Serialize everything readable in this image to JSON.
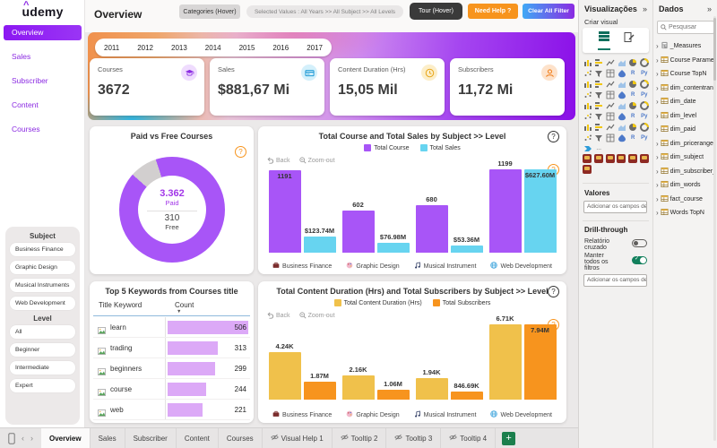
{
  "brand": {
    "logo": "udemy"
  },
  "sidebar": {
    "nav": [
      {
        "label": "Overview",
        "active": true
      },
      {
        "label": "Sales",
        "active": false
      },
      {
        "label": "Subscriber",
        "active": false
      },
      {
        "label": "Content",
        "active": false
      },
      {
        "label": "Courses",
        "active": false
      }
    ],
    "filters": {
      "subject_label": "Subject",
      "subjects": [
        "Business Finance",
        "Graphic Design",
        "Musical Instruments",
        "Web Development"
      ],
      "level_label": "Level",
      "levels": [
        "All",
        "Beginner",
        "Intermediate",
        "Expert"
      ]
    }
  },
  "header": {
    "title": "Overview",
    "categories_button": "Categories (Hover)",
    "selected_values": "Selected Values : All Years >> All Subject >> All Levels",
    "tour_button": "Tour (Hover)",
    "help_button": "Need Help ?",
    "clear_button": "Clear All Filter"
  },
  "years": [
    "2011",
    "2012",
    "2013",
    "2014",
    "2015",
    "2016",
    "2017"
  ],
  "kpis": [
    {
      "label": "Courses",
      "value": "3672",
      "icon": "graduation-cap",
      "icon_bg": "#EFDCFE"
    },
    {
      "label": "Sales",
      "value": "$881,67 Mi",
      "icon": "credit-card",
      "icon_bg": "#D4F0FB"
    },
    {
      "label": "Content Duration (Hrs)",
      "value": "15,05 Mil",
      "icon": "clock",
      "icon_bg": "#FCEEC9"
    },
    {
      "label": "Subscribers",
      "value": "11,72 Mi",
      "icon": "person",
      "icon_bg": "#FDE2CB"
    }
  ],
  "toolbar": {
    "back": "Back",
    "zoom_out": "Zoom-out"
  },
  "chart_data": [
    {
      "id": "paid_free",
      "type": "pie",
      "title": "Paid vs Free Courses",
      "slices": [
        {
          "label": "Paid",
          "value": 3362,
          "display": "3.362",
          "color": "#A855F7"
        },
        {
          "label": "Free",
          "value": 310,
          "display": "310",
          "color": "#D2CFCF"
        }
      ]
    },
    {
      "id": "course_sales",
      "type": "bar",
      "title": "Total Course and Total Sales by Subject >> Level",
      "categories": [
        "Business Finance",
        "Graphic Design",
        "Musical Instrument",
        "Web Development"
      ],
      "category_icons": [
        "briefcase",
        "palette",
        "music-note",
        "globe"
      ],
      "series": [
        {
          "name": "Total Course",
          "color": "#A855F7",
          "axis_max": 1199,
          "values": [
            1191,
            602,
            680,
            1199
          ],
          "labels": [
            "1191",
            "602",
            "680",
            "1199"
          ],
          "label_inside": [
            true,
            false,
            false,
            false
          ]
        },
        {
          "name": "Total Sales",
          "color": "#67D4F0",
          "axis_max": 627.6,
          "values": [
            123.74,
            76.98,
            53.36,
            627.6
          ],
          "labels": [
            "$123.74M",
            "$76.98M",
            "$53.36M",
            "$627.60M"
          ],
          "label_inside": [
            false,
            false,
            false,
            true
          ]
        }
      ]
    },
    {
      "id": "duration_subscribers",
      "type": "bar",
      "title": "Total Content Duration (Hrs) and Total Subscribers by Subject >> Level",
      "categories": [
        "Business Finance",
        "Graphic Design",
        "Musical Instrument",
        "Web Development"
      ],
      "category_icons": [
        "briefcase",
        "palette",
        "music-note",
        "globe"
      ],
      "series": [
        {
          "name": "Total Content Duration (Hrs)",
          "color": "#F0C14B",
          "axis_max": 6710,
          "values": [
            4240,
            2160,
            1940,
            6710
          ],
          "labels": [
            "4.24K",
            "2.16K",
            "1.94K",
            "6.71K"
          ],
          "label_inside": [
            false,
            false,
            false,
            false
          ]
        },
        {
          "name": "Total Subscribers",
          "color": "#F7941E",
          "axis_max": 7940000,
          "values": [
            1870000,
            1060000,
            846690,
            7940000
          ],
          "labels": [
            "1.87M",
            "1.06M",
            "846.69K",
            "7.94M"
          ],
          "label_inside": [
            false,
            false,
            false,
            true
          ]
        }
      ]
    },
    {
      "id": "keywords",
      "type": "table",
      "title": "Top 5 Keywords from Courses title",
      "columns": [
        "Title Keyword",
        "Count"
      ],
      "rows": [
        {
          "keyword": "learn",
          "count": 506
        },
        {
          "keyword": "trading",
          "count": 313
        },
        {
          "keyword": "beginners",
          "count": 299
        },
        {
          "keyword": "course",
          "count": 244
        },
        {
          "keyword": "web",
          "count": 221
        }
      ],
      "bar_color": "#DCA9F7",
      "max": 506
    }
  ],
  "viz_pane": {
    "title": "Visualizações",
    "create_label": "Criar visual",
    "values_label": "Valores",
    "add_data_label": "Adicionar os campos de da...",
    "drill_label": "Drill-through",
    "cross_report_label": "Relatório cruzado",
    "keep_filters_label": "Manter todos os filtros",
    "add_drill_label": "Adicionar os campos de dr...",
    "gallery_count": 48,
    "custom_visual_count": 7
  },
  "data_pane": {
    "title": "Dados",
    "search_placeholder": "Pesquisar",
    "fields": [
      "_Measures",
      "Course Parameter Table",
      "Course TopN",
      "dim_contentrange",
      "dim_date",
      "dim_level",
      "dim_paid",
      "dim_pricerange",
      "dim_subject",
      "dim_subscriber_range",
      "dim_words",
      "fact_course",
      "Words TopN"
    ]
  },
  "bottom_bar": {
    "tabs": [
      {
        "label": "Overview",
        "active": true,
        "hidden": false
      },
      {
        "label": "Sales",
        "active": false,
        "hidden": false
      },
      {
        "label": "Subscriber",
        "active": false,
        "hidden": false
      },
      {
        "label": "Content",
        "active": false,
        "hidden": false
      },
      {
        "label": "Courses",
        "active": false,
        "hidden": false
      },
      {
        "label": "Visual Help 1",
        "active": false,
        "hidden": true
      },
      {
        "label": "Tooltip 2",
        "active": false,
        "hidden": true
      },
      {
        "label": "Tooltip 3",
        "active": false,
        "hidden": true
      },
      {
        "label": "Tooltip 4",
        "active": false,
        "hidden": true
      }
    ],
    "add_label": "+"
  }
}
